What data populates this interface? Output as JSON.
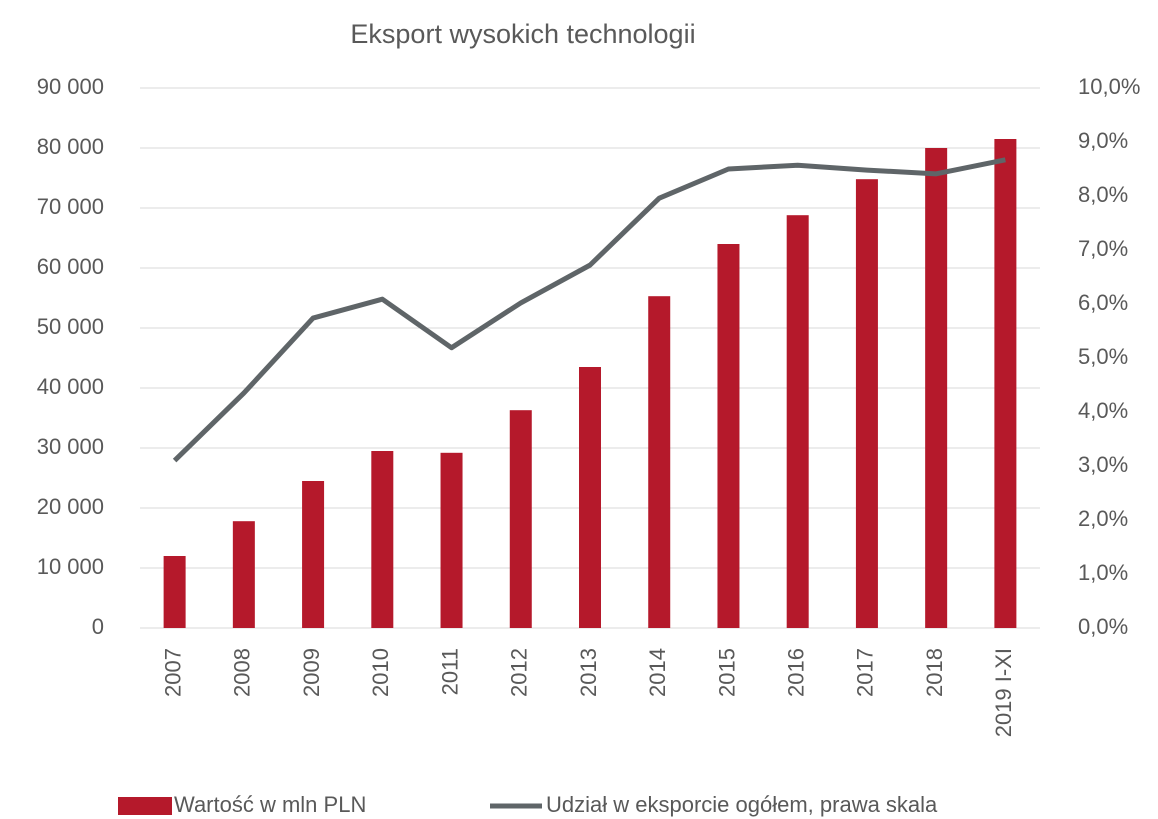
{
  "chart_data": {
    "type": "bar",
    "title": "Eksport wysokich technologii",
    "categories": [
      "2007",
      "2008",
      "2009",
      "2010",
      "2011",
      "2012",
      "2013",
      "2014",
      "2015",
      "2016",
      "2017",
      "2018",
      "2019 I-XI"
    ],
    "series": [
      {
        "name": "Wartość w mln PLN",
        "color": "#b5192b",
        "type": "bar",
        "values": [
          12000,
          17800,
          24500,
          29500,
          29200,
          36300,
          43500,
          55300,
          64000,
          68800,
          74800,
          80000,
          81500
        ]
      },
      {
        "name": "Udział w eksporcie ogółem, prawa skala",
        "color": "#5f6568",
        "type": "line",
        "axis": "y2",
        "values": [
          3.1,
          4.35,
          5.74,
          6.09,
          5.19,
          6.02,
          6.72,
          7.96,
          8.5,
          8.57,
          8.48,
          8.41,
          8.67
        ]
      }
    ],
    "ylim": [
      0,
      90000
    ],
    "yticks": [
      0,
      {
        "value": 10000,
        "label": "10 000"
      },
      {
        "value": 20000,
        "label": "20 000"
      },
      {
        "value": 30000,
        "label": "30 000"
      },
      {
        "value": 40000,
        "label": "40 000"
      },
      {
        "value": 50000,
        "label": "50 000"
      },
      {
        "value": 60000,
        "label": "60 000"
      },
      {
        "value": 70000,
        "label": "70 000"
      },
      {
        "value": 80000,
        "label": "80 000"
      },
      {
        "value": 90000,
        "label": "90 000"
      }
    ],
    "y2lim": [
      0,
      10
    ],
    "y2ticks": [
      {
        "value": 0,
        "label": "0,0%"
      },
      {
        "value": 1,
        "label": "1,0%"
      },
      {
        "value": 2,
        "label": "2,0%"
      },
      {
        "value": 3,
        "label": "3,0%"
      },
      {
        "value": 4,
        "label": "4,0%"
      },
      {
        "value": 5,
        "label": "5,0%"
      },
      {
        "value": 6,
        "label": "6,0%"
      },
      {
        "value": 7,
        "label": "7,0%"
      },
      {
        "value": 8,
        "label": "8,0%"
      },
      {
        "value": 9,
        "label": "9,0%"
      },
      {
        "value": 10,
        "label": "10,0%"
      }
    ],
    "grid": true,
    "legend": "bottom"
  }
}
